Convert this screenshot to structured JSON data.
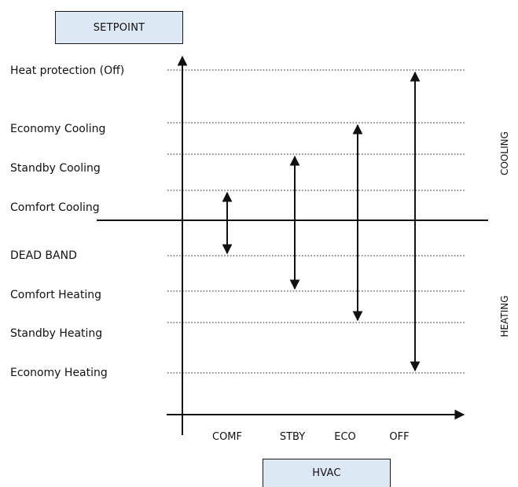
{
  "setpoint_label": "SETPOINT",
  "hvac_label": "HVAC",
  "rows": [
    {
      "label": "Heat protection (Off)"
    },
    {
      "label": "Economy Cooling"
    },
    {
      "label": "Standby Cooling"
    },
    {
      "label": "Comfort Cooling"
    },
    {
      "label": "DEAD BAND"
    },
    {
      "label": "Comfort Heating"
    },
    {
      "label": "Standby  Heating"
    },
    {
      "label": "Economy Heating"
    }
  ],
  "modes": [
    {
      "label": "COMF"
    },
    {
      "label": "STBY"
    },
    {
      "label": "ECO"
    },
    {
      "label": "OFF"
    }
  ],
  "side_labels": {
    "cooling": "COOLING",
    "heating": "HEATING"
  },
  "colors": {
    "box_fill": "#dce9f5",
    "line": "#111111"
  }
}
